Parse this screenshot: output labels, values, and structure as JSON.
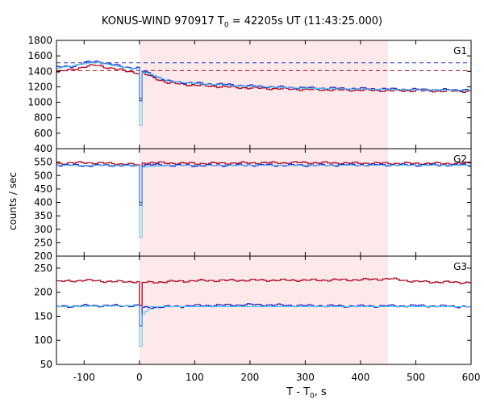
{
  "chart_data": {
    "type": "line",
    "title_main": "KONUS-WIND 970917 T",
    "title_sub": "0",
    "title_rest": " = 42205s UT (11:43:25.000)",
    "xlabel_main": "T - T",
    "xlabel_sub": "0",
    "xlabel_rest": ", s",
    "ylabel": "counts / sec",
    "xlim": [
      -150,
      600
    ],
    "x_ticks": [
      -100,
      0,
      100,
      200,
      300,
      400,
      500,
      600
    ],
    "highlight_interval": [
      0,
      450
    ],
    "colors": {
      "red": "#b0102a",
      "blue": "#2233cc",
      "cyan": "#55c5f0",
      "highlight": "#fde8ea",
      "frame": "#000000"
    },
    "panels": [
      {
        "name": "G1",
        "ylim": [
          400,
          1800
        ],
        "y_ticks": [
          400,
          600,
          800,
          1000,
          1200,
          1400,
          1600,
          1800
        ],
        "red_level": 1410,
        "blue_level": 1510,
        "series": [
          {
            "color_key": "red",
            "points": [
              [
                -150,
                1390
              ],
              [
                -120,
                1430
              ],
              [
                -100,
                1460
              ],
              [
                -80,
                1480
              ],
              [
                -60,
                1450
              ],
              [
                -40,
                1420
              ],
              [
                -20,
                1400
              ],
              [
                -5,
                1380
              ],
              [
                0,
                1050
              ],
              [
                2,
                1380
              ],
              [
                20,
                1330
              ],
              [
                50,
                1250
              ],
              [
                100,
                1220
              ],
              [
                150,
                1200
              ],
              [
                200,
                1185
              ],
              [
                250,
                1175
              ],
              [
                300,
                1165
              ],
              [
                350,
                1160
              ],
              [
                400,
                1158
              ],
              [
                450,
                1150
              ],
              [
                500,
                1150
              ],
              [
                550,
                1145
              ],
              [
                600,
                1145
              ]
            ]
          },
          {
            "color_key": "blue",
            "points": [
              [
                -150,
                1450
              ],
              [
                -120,
                1470
              ],
              [
                -100,
                1510
              ],
              [
                -80,
                1530
              ],
              [
                -60,
                1500
              ],
              [
                -40,
                1470
              ],
              [
                -20,
                1450
              ],
              [
                -5,
                1440
              ],
              [
                0,
                1020
              ],
              [
                2,
                1410
              ],
              [
                20,
                1360
              ],
              [
                50,
                1270
              ],
              [
                100,
                1245
              ],
              [
                150,
                1230
              ],
              [
                200,
                1210
              ],
              [
                250,
                1195
              ],
              [
                300,
                1185
              ],
              [
                350,
                1180
              ],
              [
                400,
                1175
              ],
              [
                450,
                1170
              ],
              [
                500,
                1165
              ],
              [
                550,
                1160
              ],
              [
                600,
                1160
              ]
            ]
          },
          {
            "color_key": "cyan",
            "points": [
              [
                -150,
                1440
              ],
              [
                -100,
                1500
              ],
              [
                -80,
                1520
              ],
              [
                -40,
                1460
              ],
              [
                -5,
                1430
              ],
              [
                -1,
                1400
              ],
              [
                0,
                700
              ],
              [
                1,
                1400
              ],
              [
                20,
                1360
              ],
              [
                50,
                1275
              ],
              [
                100,
                1240
              ],
              [
                200,
                1205
              ],
              [
                300,
                1180
              ],
              [
                400,
                1170
              ],
              [
                500,
                1160
              ],
              [
                600,
                1155
              ]
            ]
          }
        ]
      },
      {
        "name": "G2",
        "ylim": [
          200,
          600
        ],
        "y_ticks": [
          200,
          250,
          300,
          350,
          400,
          450,
          500,
          550
        ],
        "series": [
          {
            "color_key": "red",
            "points": [
              [
                -150,
                545
              ],
              [
                -100,
                548
              ],
              [
                -50,
                545
              ],
              [
                -5,
                540
              ],
              [
                0,
                400
              ],
              [
                2,
                548
              ],
              [
                100,
                545
              ],
              [
                200,
                547
              ],
              [
                300,
                548
              ],
              [
                400,
                546
              ],
              [
                500,
                545
              ],
              [
                600,
                545
              ]
            ]
          },
          {
            "color_key": "blue",
            "points": [
              [
                -150,
                540
              ],
              [
                -100,
                537
              ],
              [
                -50,
                538
              ],
              [
                -5,
                536
              ],
              [
                0,
                390
              ],
              [
                2,
                540
              ],
              [
                100,
                537
              ],
              [
                200,
                539
              ],
              [
                300,
                538
              ],
              [
                400,
                540
              ],
              [
                500,
                539
              ],
              [
                600,
                539
              ]
            ]
          },
          {
            "color_key": "cyan",
            "points": [
              [
                -150,
                538
              ],
              [
                -5,
                537
              ],
              [
                -1,
                520
              ],
              [
                0,
                270
              ],
              [
                1,
                530
              ],
              [
                50,
                538
              ],
              [
                600,
                538
              ]
            ]
          }
        ]
      },
      {
        "name": "G3",
        "ylim": [
          50,
          275
        ],
        "y_ticks": [
          50,
          100,
          150,
          200,
          250
        ],
        "series": [
          {
            "color_key": "red",
            "points": [
              [
                -150,
                222
              ],
              [
                -100,
                225
              ],
              [
                -50,
                222
              ],
              [
                -5,
                222
              ],
              [
                0,
                172
              ],
              [
                2,
                220
              ],
              [
                100,
                224
              ],
              [
                200,
                225
              ],
              [
                300,
                225
              ],
              [
                400,
                226
              ],
              [
                450,
                228
              ],
              [
                500,
                222
              ],
              [
                600,
                220
              ]
            ]
          },
          {
            "color_key": "blue",
            "points": [
              [
                -150,
                170
              ],
              [
                -100,
                172
              ],
              [
                -50,
                172
              ],
              [
                -5,
                172
              ],
              [
                0,
                130
              ],
              [
                2,
                168
              ],
              [
                100,
                172
              ],
              [
                200,
                174
              ],
              [
                300,
                172
              ],
              [
                400,
                171
              ],
              [
                500,
                172
              ],
              [
                600,
                170
              ]
            ]
          },
          {
            "color_key": "cyan",
            "points": [
              [
                -150,
                170
              ],
              [
                -5,
                172
              ],
              [
                -1,
                160
              ],
              [
                0,
                88
              ],
              [
                1,
                150
              ],
              [
                20,
                170
              ],
              [
                600,
                170
              ]
            ]
          }
        ]
      }
    ]
  }
}
